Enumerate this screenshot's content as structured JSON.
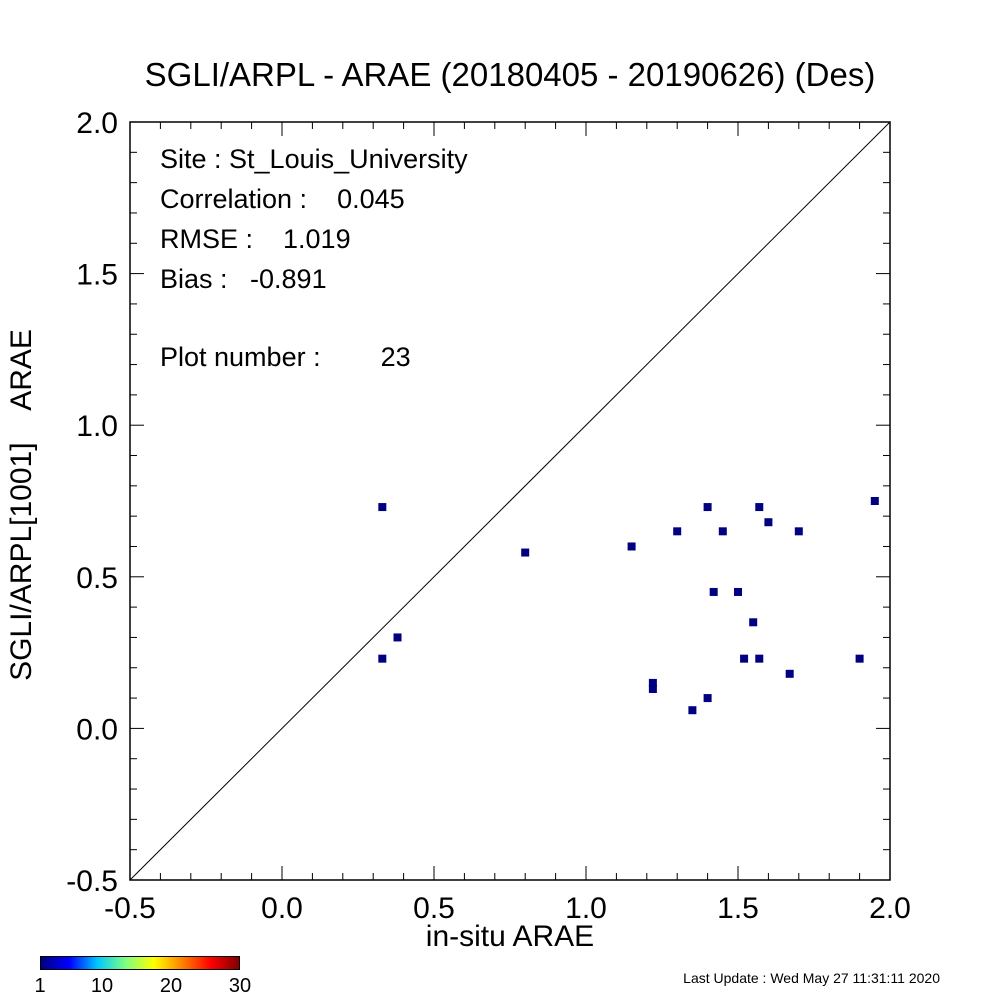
{
  "chart_data": {
    "type": "scatter",
    "title": "SGLI/ARPL - ARAE (20180405 - 20190626) (Des)",
    "xlabel": "in-situ ARAE",
    "ylabel": "SGLI/ARPL[1001]    ARAE",
    "xlim": [
      -0.5,
      2.0
    ],
    "ylim": [
      -0.5,
      2.0
    ],
    "x_ticks": [
      "-0.5",
      "0.0",
      "0.5",
      "1.0",
      "1.5",
      "2.0"
    ],
    "y_ticks": [
      "-0.5",
      "0.0",
      "0.5",
      "1.0",
      "1.5",
      "2.0"
    ],
    "reference_line": "1:1",
    "marker_color": "#000080",
    "points": [
      {
        "x": 0.33,
        "y": 0.73
      },
      {
        "x": 0.33,
        "y": 0.23
      },
      {
        "x": 0.38,
        "y": 0.3
      },
      {
        "x": 0.8,
        "y": 0.58
      },
      {
        "x": 1.15,
        "y": 0.6
      },
      {
        "x": 1.22,
        "y": 0.15
      },
      {
        "x": 1.22,
        "y": 0.13
      },
      {
        "x": 1.3,
        "y": 0.65
      },
      {
        "x": 1.35,
        "y": 0.06
      },
      {
        "x": 1.4,
        "y": 0.73
      },
      {
        "x": 1.4,
        "y": 0.1
      },
      {
        "x": 1.42,
        "y": 0.45
      },
      {
        "x": 1.45,
        "y": 0.65
      },
      {
        "x": 1.5,
        "y": 0.45
      },
      {
        "x": 1.52,
        "y": 0.23
      },
      {
        "x": 1.55,
        "y": 0.35
      },
      {
        "x": 1.57,
        "y": 0.73
      },
      {
        "x": 1.57,
        "y": 0.23
      },
      {
        "x": 1.6,
        "y": 0.68
      },
      {
        "x": 1.67,
        "y": 0.18
      },
      {
        "x": 1.7,
        "y": 0.65
      },
      {
        "x": 1.9,
        "y": 0.23
      },
      {
        "x": 1.95,
        "y": 0.75
      }
    ]
  },
  "stats": {
    "site": "Site : St_Louis_University",
    "correlation": "Correlation :    0.045",
    "rmse": "RMSE :    1.019",
    "bias": "Bias :   -0.891",
    "plot_number": "Plot number :        23"
  },
  "colorbar": {
    "ticks": [
      "1",
      "10",
      "20",
      "30"
    ],
    "colors": [
      "#000080",
      "#0000ff",
      "#00c8ff",
      "#80ff80",
      "#ffff00",
      "#ff8000",
      "#ff0000",
      "#800000"
    ]
  },
  "last_update": "Last Update : Wed May 27 11:31:11 2020"
}
